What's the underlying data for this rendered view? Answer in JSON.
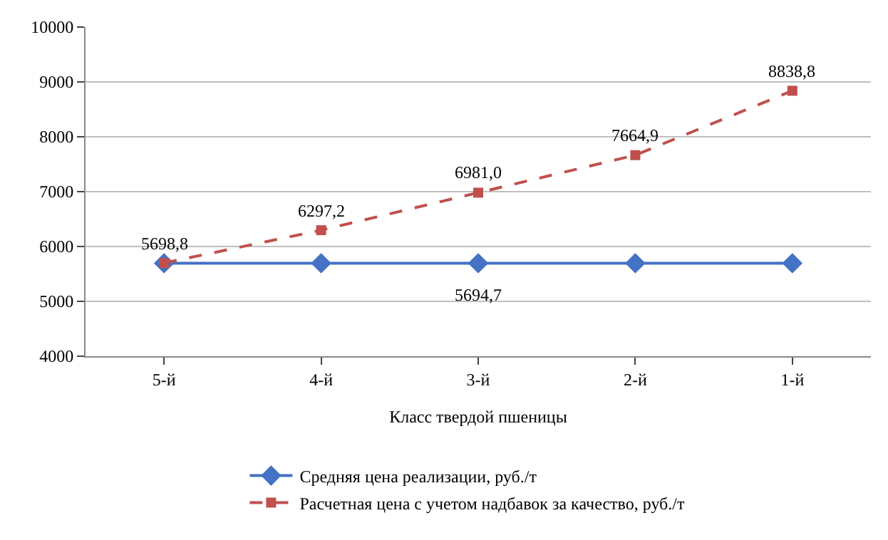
{
  "chart_data": {
    "type": "line",
    "xlabel": "Класс твердой пшеницы",
    "categories": [
      "5-й",
      "4-й",
      "3-й",
      "2-й",
      "1-й"
    ],
    "series": [
      {
        "name": "Средняя цена реализации, руб./т",
        "color": "#4472c4",
        "marker": "diamond",
        "line_style": "solid",
        "values": [
          5694.7,
          5694.7,
          5694.7,
          5694.7,
          5694.7
        ],
        "value_labels": [
          null,
          null,
          "5694,7",
          null,
          null
        ]
      },
      {
        "name": "Расчетная цена с учетом надбавок за качество, руб./т",
        "color": "#c0504d",
        "marker": "square",
        "line_style": "dashed",
        "values": [
          5698.8,
          6297.2,
          6981.0,
          7664.9,
          8838.8
        ],
        "value_labels": [
          "5698,8",
          "6297,2",
          "6981,0",
          "7664,9",
          "8838,8"
        ]
      }
    ],
    "ylim": [
      4000,
      10000
    ],
    "yticks": [
      4000,
      5000,
      6000,
      7000,
      8000,
      9000,
      10000
    ],
    "grid": "y",
    "legend": "bottom"
  }
}
